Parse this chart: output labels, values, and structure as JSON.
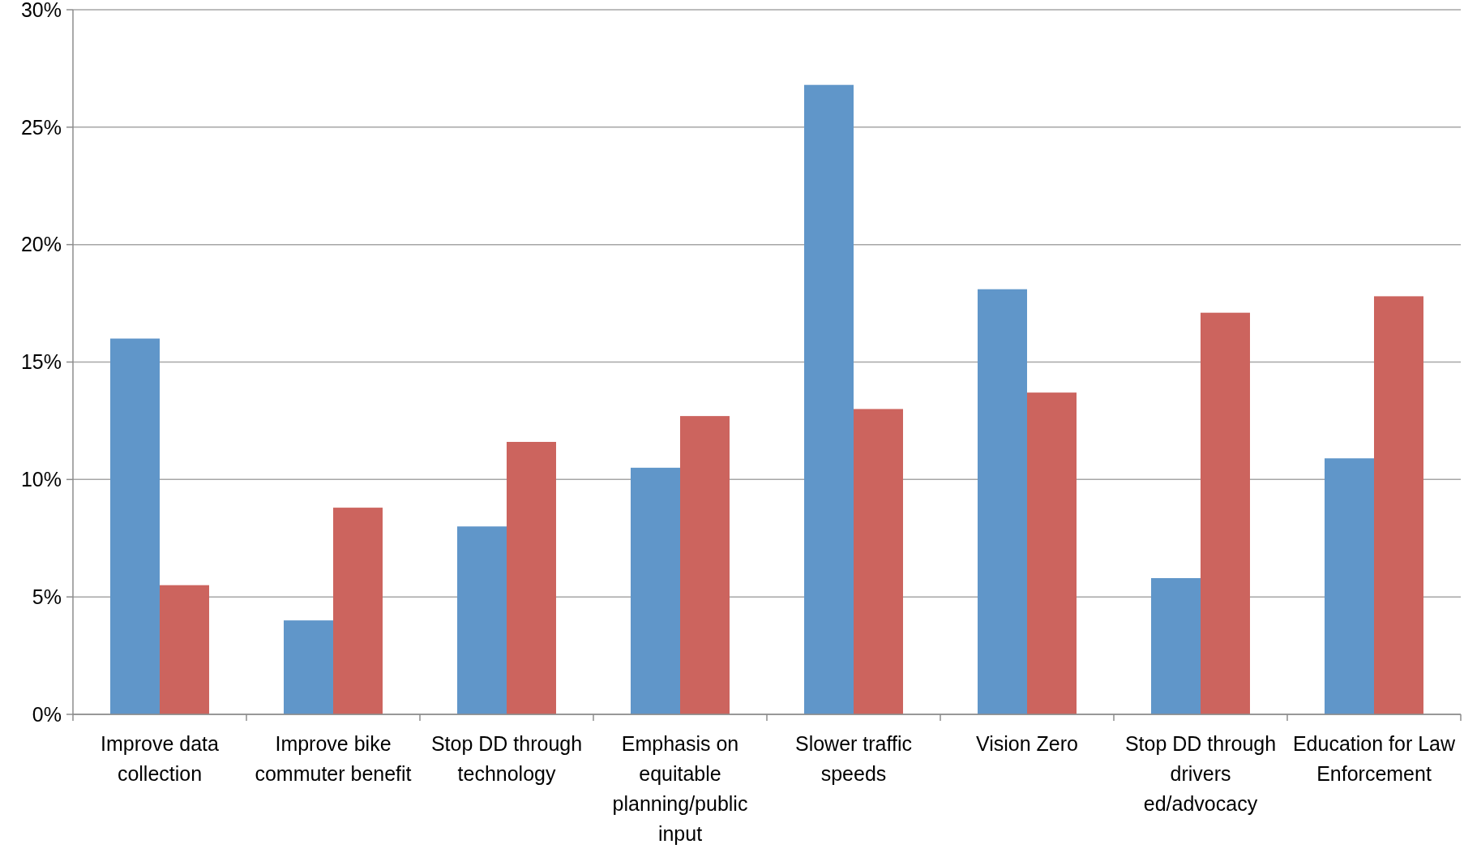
{
  "chart_data": {
    "type": "bar",
    "categories": [
      "Improve data collection",
      "Improve bike commuter benefit",
      "Stop DD through technology",
      "Emphasis on equitable planning/public input",
      "Slower traffic speeds",
      "Vision Zero",
      "Stop DD through drivers ed/advocacy",
      "Education for Law Enforcement"
    ],
    "series": [
      {
        "color": "#6096c9",
        "values": [
          16.0,
          4.0,
          8.0,
          10.5,
          26.8,
          18.1,
          5.8,
          10.9
        ]
      },
      {
        "color": "#cc645e",
        "values": [
          5.5,
          8.8,
          11.6,
          12.7,
          13.0,
          13.7,
          17.1,
          17.8
        ]
      }
    ],
    "ylim": [
      0,
      30
    ],
    "yticks": [
      {
        "value": 0,
        "label": "0%"
      },
      {
        "value": 5,
        "label": "5%"
      },
      {
        "value": 10,
        "label": "10%"
      },
      {
        "value": 15,
        "label": "15%"
      },
      {
        "value": 20,
        "label": "20%"
      },
      {
        "value": 25,
        "label": "25%"
      },
      {
        "value": 30,
        "label": "30%"
      }
    ],
    "grid": "y"
  }
}
